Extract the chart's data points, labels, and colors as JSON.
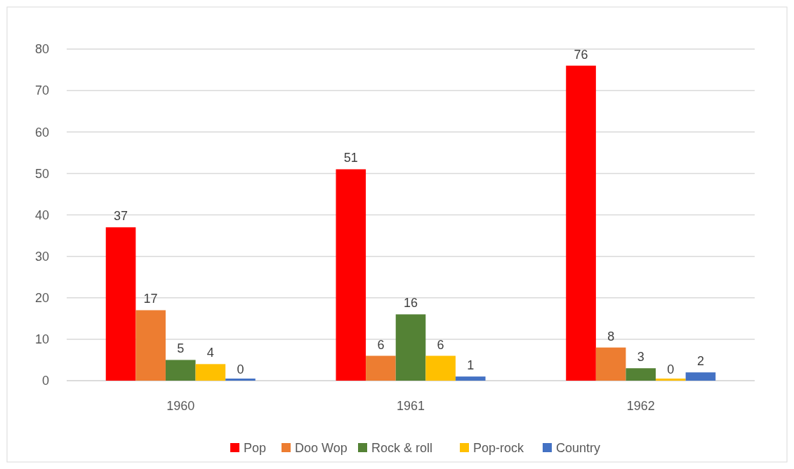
{
  "chart_data": {
    "type": "bar",
    "categories": [
      "1960",
      "1961",
      "1962"
    ],
    "series": [
      {
        "name": "Pop",
        "color": "#ff0000",
        "values": [
          37,
          51,
          76
        ]
      },
      {
        "name": "Doo Wop",
        "color": "#ed7d31",
        "values": [
          17,
          6,
          8
        ]
      },
      {
        "name": "Rock & roll",
        "color": "#548235",
        "values": [
          5,
          16,
          3
        ]
      },
      {
        "name": "Pop-rock",
        "color": "#ffc000",
        "values": [
          4,
          6,
          0
        ]
      },
      {
        "name": "Country",
        "color": "#4472c4",
        "values": [
          0,
          1,
          2
        ]
      }
    ],
    "ylim": [
      0,
      80
    ],
    "yticks": [
      0,
      10,
      20,
      30,
      40,
      50,
      60,
      70,
      80
    ],
    "grid": "y",
    "legend": "bottom",
    "data_labels": true
  }
}
